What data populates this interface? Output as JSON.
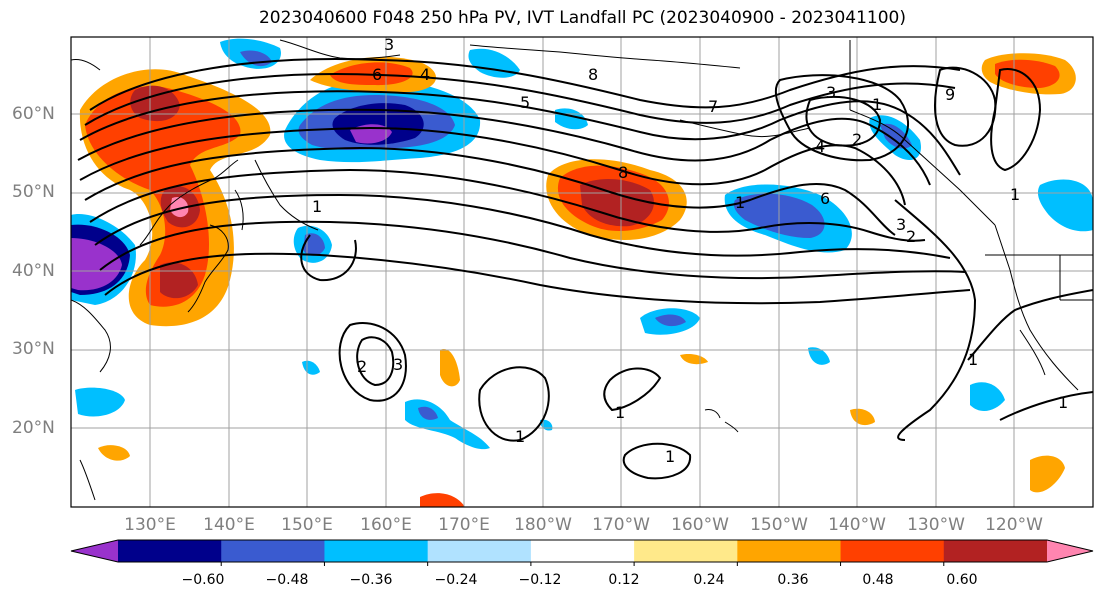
{
  "title": "2023040600 F048 250 hPa PV, IVT Landfall PC (2023040900 - 2023041100)",
  "lat_labels": [
    "60°N",
    "50°N",
    "40°N",
    "30°N",
    "20°N"
  ],
  "lon_labels": [
    "130°E",
    "140°E",
    "150°E",
    "160°E",
    "170°E",
    "180°W",
    "170°W",
    "160°W",
    "150°W",
    "140°W",
    "130°W",
    "120°W"
  ],
  "colorbar": {
    "ticks": [
      "−0.60",
      "−0.48",
      "−0.36",
      "−0.24",
      "−0.12",
      "0.12",
      "0.24",
      "0.36",
      "0.48",
      "0.60"
    ],
    "colors": [
      "#9932cc",
      "#00008b",
      "#3a5bd0",
      "#00bfff",
      "#b0e2ff",
      "#ffffff",
      "#ffe98a",
      "#ffa500",
      "#ff4000",
      "#b22222",
      "#ff85b0"
    ]
  },
  "contour_labels": [
    "3",
    "4",
    "6",
    "5",
    "8",
    "7",
    "3",
    "1",
    "2",
    "4",
    "6",
    "3",
    "2",
    "9",
    "8",
    "1",
    "1",
    "2",
    "3",
    "1",
    "1",
    "1",
    "1",
    "1",
    "1"
  ],
  "colors": {
    "frame": "#000000",
    "grid": "#a0a0a0",
    "coast": "#000000"
  }
}
